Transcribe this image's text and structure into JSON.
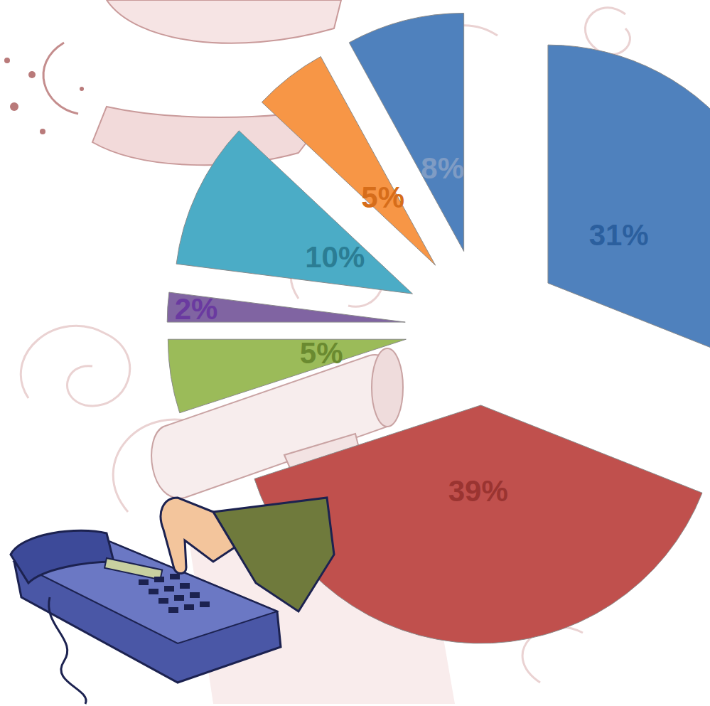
{
  "chart_data": {
    "type": "pie",
    "values": [
      31,
      39,
      5,
      2,
      10,
      5,
      8
    ],
    "value_labels": [
      "31%",
      "39%",
      "5%",
      "2%",
      "10%",
      "5%",
      "8%"
    ],
    "colors": [
      "#4f81bd",
      "#c0504d",
      "#9bbb59",
      "#8064a2",
      "#4bacc6",
      "#f79646",
      "#4f81bd"
    ],
    "data_labels": true
  }
}
